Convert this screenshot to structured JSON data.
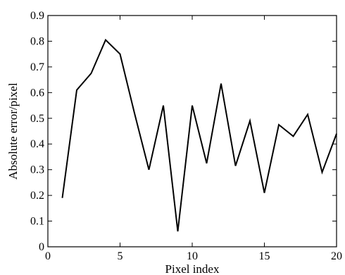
{
  "chart_data": {
    "type": "line",
    "title": "",
    "xlabel": "Pixel index",
    "ylabel": "Absolute error/pixel",
    "xlim": [
      0,
      20
    ],
    "ylim": [
      0,
      0.9
    ],
    "xticks": [
      0,
      5,
      10,
      15,
      20
    ],
    "yticks": [
      0,
      0.1,
      0.2,
      0.3,
      0.4,
      0.5,
      0.6,
      0.7,
      0.8,
      0.9
    ],
    "grid": false,
    "series": [
      {
        "color": "#000000",
        "x": [
          1,
          2,
          3,
          4,
          5,
          6,
          7,
          8,
          9,
          10,
          11,
          12,
          13,
          14,
          15,
          16,
          17,
          18,
          19,
          20
        ],
        "y": [
          0.19,
          0.61,
          0.675,
          0.805,
          0.75,
          0.52,
          0.3,
          0.55,
          0.06,
          0.55,
          0.325,
          0.635,
          0.315,
          0.49,
          0.21,
          0.475,
          0.43,
          0.515,
          0.29,
          0.44
        ]
      }
    ]
  }
}
